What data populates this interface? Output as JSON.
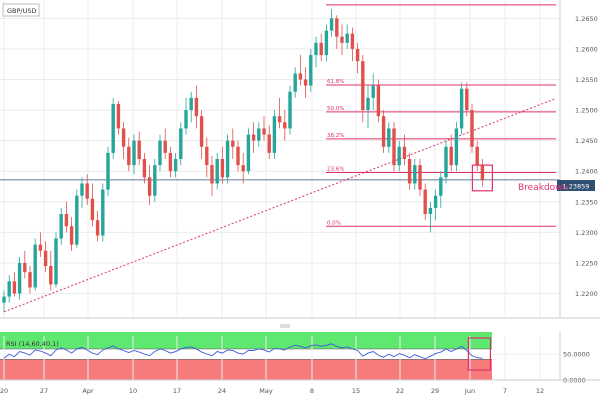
{
  "symbol": "GBP/USD",
  "current_price_label": "1.23859",
  "colors": {
    "bull": "#26a69a",
    "bear": "#e0504d",
    "fib": "#e0306c",
    "breakdown": "#e03070",
    "price_line": "#2f4f73",
    "grid": "#ececec",
    "rsi_line": "#3b5bdb",
    "rsi_overbought": "#5ee870",
    "rsi_oversold": "#f77b7b",
    "axis_text": "#555555"
  },
  "chart_data": [
    {
      "type": "candlestick",
      "title": "GBP/USD",
      "y_ticks": [
        "1.2200",
        "1.2250",
        "1.2300",
        "1.2350",
        "1.2400",
        "1.2450",
        "1.2500",
        "1.2550",
        "1.2600",
        "1.2650"
      ],
      "ylim": [
        1.216,
        1.268
      ],
      "x_ticks": [
        "20",
        "27",
        "Apr",
        "10",
        "17",
        "24",
        "May",
        "8",
        "15",
        "22",
        "29",
        "Jun",
        "7",
        "12"
      ],
      "grid": true,
      "last_price": 1.23859,
      "fib_levels": [
        {
          "label": "0.0%",
          "value": 1.231
        },
        {
          "label": "23.6%",
          "value": 1.2398
        },
        {
          "label": "38.2%",
          "value": 1.2453
        },
        {
          "label": "50.0%",
          "value": 1.2497
        },
        {
          "label": "61.8%",
          "value": 1.2541
        },
        {
          "label": "",
          "value": 1.2672
        }
      ],
      "annotations": [
        {
          "text": "Breakdown"
        }
      ],
      "candles": [
        [
          1.2185,
          1.2205,
          1.217,
          1.2195
        ],
        [
          1.2195,
          1.223,
          1.2185,
          1.222
        ],
        [
          1.222,
          1.2235,
          1.2195,
          1.22
        ],
        [
          1.22,
          1.226,
          1.219,
          1.225
        ],
        [
          1.225,
          1.227,
          1.2225,
          1.2235
        ],
        [
          1.2235,
          1.2245,
          1.22,
          1.221
        ],
        [
          1.221,
          1.229,
          1.2205,
          1.228
        ],
        [
          1.228,
          1.23,
          1.226,
          1.227
        ],
        [
          1.227,
          1.2285,
          1.2235,
          1.2245
        ],
        [
          1.2245,
          1.227,
          1.2205,
          1.2215
        ],
        [
          1.2215,
          1.23,
          1.221,
          1.229
        ],
        [
          1.229,
          1.234,
          1.228,
          1.233
        ],
        [
          1.233,
          1.235,
          1.23,
          1.231
        ],
        [
          1.231,
          1.2325,
          1.227,
          1.228
        ],
        [
          1.228,
          1.237,
          1.2275,
          1.236
        ],
        [
          1.236,
          1.239,
          1.234,
          1.238
        ],
        [
          1.238,
          1.2395,
          1.2345,
          1.2355
        ],
        [
          1.2355,
          1.238,
          1.231,
          1.232
        ],
        [
          1.232,
          1.2335,
          1.2285,
          1.2295
        ],
        [
          1.2295,
          1.238,
          1.2285,
          1.237
        ],
        [
          1.237,
          1.244,
          1.236,
          1.243
        ],
        [
          1.243,
          1.252,
          1.242,
          1.251
        ],
        [
          1.251,
          1.2515,
          1.246,
          1.247
        ],
        [
          1.247,
          1.248,
          1.242,
          1.244
        ],
        [
          1.244,
          1.2455,
          1.24,
          1.241
        ],
        [
          1.241,
          1.246,
          1.2395,
          1.245
        ],
        [
          1.245,
          1.2465,
          1.241,
          1.242
        ],
        [
          1.242,
          1.243,
          1.238,
          1.239
        ],
        [
          1.239,
          1.241,
          1.2345,
          1.236
        ],
        [
          1.236,
          1.242,
          1.235,
          1.241
        ],
        [
          1.241,
          1.246,
          1.24,
          1.245
        ],
        [
          1.245,
          1.247,
          1.242,
          1.243
        ],
        [
          1.243,
          1.244,
          1.239,
          1.24
        ],
        [
          1.24,
          1.243,
          1.239,
          1.242
        ],
        [
          1.242,
          1.248,
          1.241,
          1.247
        ],
        [
          1.247,
          1.252,
          1.246,
          1.25
        ],
        [
          1.25,
          1.253,
          1.248,
          1.252
        ],
        [
          1.252,
          1.254,
          1.247,
          1.249
        ],
        [
          1.249,
          1.25,
          1.242,
          1.244
        ],
        [
          1.244,
          1.2455,
          1.239,
          1.241
        ],
        [
          1.241,
          1.2425,
          1.236,
          1.238
        ],
        [
          1.238,
          1.243,
          1.237,
          1.242
        ],
        [
          1.242,
          1.244,
          1.238,
          1.239
        ],
        [
          1.239,
          1.246,
          1.238,
          1.245
        ],
        [
          1.245,
          1.247,
          1.242,
          1.244
        ],
        [
          1.244,
          1.245,
          1.24,
          1.241
        ],
        [
          1.241,
          1.243,
          1.238,
          1.24
        ],
        [
          1.24,
          1.247,
          1.2395,
          1.246
        ],
        [
          1.246,
          1.248,
          1.243,
          1.245
        ],
        [
          1.245,
          1.248,
          1.244,
          1.247
        ],
        [
          1.247,
          1.249,
          1.245,
          1.246
        ],
        [
          1.246,
          1.2475,
          1.242,
          1.243
        ],
        [
          1.243,
          1.25,
          1.242,
          1.249
        ],
        [
          1.249,
          1.252,
          1.247,
          1.248
        ],
        [
          1.248,
          1.25,
          1.245,
          1.247
        ],
        [
          1.247,
          1.254,
          1.246,
          1.253
        ],
        [
          1.253,
          1.257,
          1.252,
          1.256
        ],
        [
          1.256,
          1.259,
          1.254,
          1.255
        ],
        [
          1.255,
          1.257,
          1.252,
          1.254
        ],
        [
          1.254,
          1.26,
          1.253,
          1.259
        ],
        [
          1.259,
          1.262,
          1.257,
          1.261
        ],
        [
          1.261,
          1.2625,
          1.258,
          1.259
        ],
        [
          1.259,
          1.264,
          1.258,
          1.263
        ],
        [
          1.263,
          1.2665,
          1.262,
          1.265
        ],
        [
          1.265,
          1.2655,
          1.26,
          1.262
        ],
        [
          1.262,
          1.264,
          1.259,
          1.261
        ],
        [
          1.261,
          1.264,
          1.26,
          1.2625
        ],
        [
          1.2625,
          1.2635,
          1.258,
          1.26
        ],
        [
          1.26,
          1.261,
          1.256,
          1.258
        ],
        [
          1.258,
          1.259,
          1.248,
          1.25
        ],
        [
          1.25,
          1.254,
          1.247,
          1.252
        ],
        [
          1.252,
          1.256,
          1.25,
          1.254
        ],
        [
          1.254,
          1.255,
          1.248,
          1.249
        ],
        [
          1.249,
          1.25,
          1.243,
          1.244
        ],
        [
          1.244,
          1.248,
          1.243,
          1.247
        ],
        [
          1.247,
          1.248,
          1.24,
          1.241
        ],
        [
          1.241,
          1.245,
          1.24,
          1.244
        ],
        [
          1.244,
          1.246,
          1.241,
          1.242
        ],
        [
          1.242,
          1.243,
          1.237,
          1.238
        ],
        [
          1.238,
          1.242,
          1.237,
          1.241
        ],
        [
          1.241,
          1.242,
          1.236,
          1.237
        ],
        [
          1.237,
          1.238,
          1.232,
          1.233
        ],
        [
          1.233,
          1.235,
          1.23,
          1.234
        ],
        [
          1.234,
          1.237,
          1.232,
          1.236
        ],
        [
          1.236,
          1.24,
          1.234,
          1.239
        ],
        [
          1.239,
          1.245,
          1.238,
          1.244
        ],
        [
          1.244,
          1.246,
          1.24,
          1.241
        ],
        [
          1.241,
          1.248,
          1.24,
          1.247
        ],
        [
          1.247,
          1.2545,
          1.246,
          1.2535
        ],
        [
          1.2535,
          1.2545,
          1.249,
          1.25
        ],
        [
          1.25,
          1.251,
          1.243,
          1.244
        ],
        [
          1.244,
          1.245,
          1.24,
          1.241
        ],
        [
          1.241,
          1.242,
          1.2375,
          1.2386
        ]
      ]
    },
    {
      "type": "line",
      "title": "RSI (14,60,40,1)",
      "y_ticks": [
        "0.0000",
        "50.0000"
      ],
      "ylim": [
        0,
        85
      ],
      "x_ticks": [
        "20",
        "27",
        "Apr",
        "10",
        "17",
        "24",
        "May",
        "8",
        "15",
        "22",
        "29",
        "Jun",
        "7",
        "12"
      ],
      "grid": true,
      "bands": {
        "overbought": 60,
        "oversold": 40
      },
      "values": [
        42,
        50,
        45,
        55,
        52,
        48,
        58,
        56,
        52,
        47,
        58,
        62,
        58,
        52,
        60,
        63,
        58,
        52,
        49,
        58,
        62,
        66,
        60,
        57,
        53,
        57,
        54,
        50,
        47,
        55,
        60,
        57,
        52,
        55,
        60,
        63,
        64,
        60,
        54,
        50,
        47,
        55,
        52,
        58,
        57,
        52,
        50,
        57,
        57,
        60,
        58,
        54,
        61,
        60,
        58,
        64,
        67,
        65,
        62,
        66,
        68,
        65,
        67,
        70,
        65,
        62,
        64,
        60,
        57,
        46,
        52,
        55,
        48,
        44,
        50,
        45,
        51,
        48,
        43,
        49,
        45,
        41,
        46,
        51,
        54,
        60,
        55,
        60,
        65,
        57,
        47,
        43,
        42
      ]
    }
  ]
}
